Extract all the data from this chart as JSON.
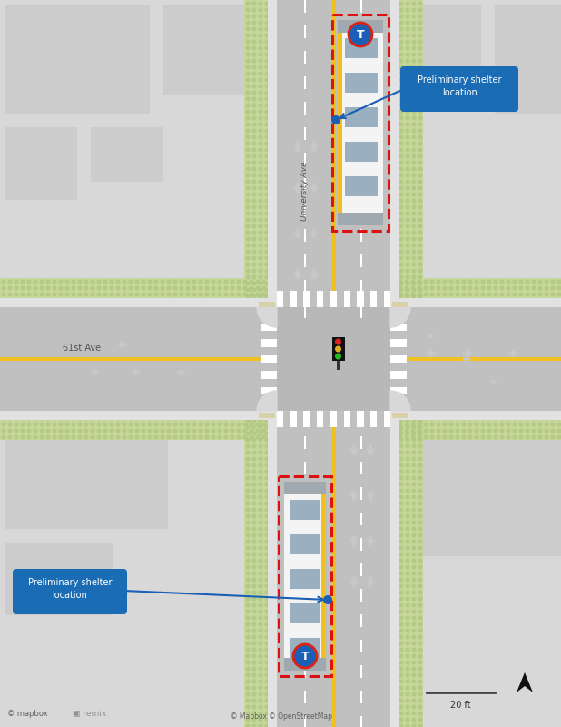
{
  "bg_light": "#eaeaea",
  "bg_block": "#d8d8d8",
  "road_color": "#c0c0c0",
  "sidewalk_color": "#e2e2e2",
  "grass_color": "#c5d89a",
  "grass_dot_color": "#afc47e",
  "crosswalk_color": "#ffffff",
  "yellow_line_color": "#f0c020",
  "white_line_color": "#ffffff",
  "bus_body_color": "#f4f4f4",
  "bus_window_color": "#9ab0c0",
  "bus_end_color": "#a0a8b0",
  "red_dash_color": "#dd1111",
  "shelter_box_color": "#1a6db5",
  "shelter_text_color": "#ffffff",
  "transit_bg": "#1a5fb5",
  "transit_red": "#dd2211",
  "traffic_box": "#111111",
  "traffic_red": "#dd2222",
  "traffic_yellow": "#ddaa22",
  "traffic_green": "#22bb22",
  "arrow_color": "#c8c8c8",
  "street_label": "University Ave",
  "cross_label": "61st Ave",
  "scale_label": "20 ft",
  "attribution": "© Mapbox © OpenStreetMap",
  "mapbox_logo": "© mapbox",
  "remix_logo": "▣ remix",
  "corner_color": "#d0d0d0",
  "curb_color": "#e8e5d8",
  "tan_curb": "#d8d0a8",
  "bldg_left_top": "#d4d4d4",
  "bldg_right_top": "#d8d8d8",
  "UNIV_L": 305,
  "UNIV_R": 430,
  "CROSS_T": 338,
  "CROSS_B": 452,
  "ROAD_T": 338,
  "ROAD_B": 452
}
